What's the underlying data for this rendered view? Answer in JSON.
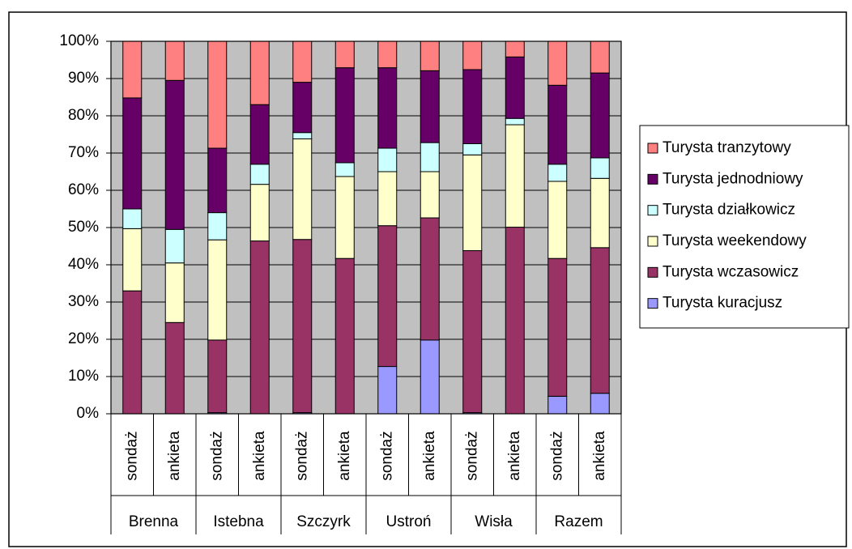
{
  "chart_data": {
    "type": "stacked_bar",
    "categories": [
      "sondaż",
      "ankieta",
      "sondaż",
      "ankieta",
      "sondaż",
      "ankieta",
      "sondaż",
      "ankieta",
      "sondaż",
      "ankieta",
      "sondaż",
      "ankieta"
    ],
    "groups": [
      "Brenna",
      "Istebna",
      "Szczyrk",
      "Ustroń",
      "Wisła",
      "Razem"
    ],
    "series": [
      {
        "name": "Turysta kuracjusz",
        "color": "#9999ff",
        "values": [
          0,
          0,
          0.3,
          0,
          0.3,
          0,
          12.7,
          19.8,
          0.3,
          0,
          4.7,
          5.5
        ]
      },
      {
        "name": "Turysta wczasowicz",
        "color": "#993366",
        "values": [
          33,
          24.5,
          19.5,
          46.4,
          46.5,
          41.7,
          37.8,
          32.8,
          43.5,
          50.1,
          37,
          39.1
        ]
      },
      {
        "name": "Turysta weekendowy",
        "color": "#ffffcc",
        "values": [
          16.7,
          16,
          26.9,
          15.2,
          27,
          22,
          14.5,
          12.4,
          25.7,
          27.5,
          20.7,
          18.6
        ]
      },
      {
        "name": "Turysta działkowicz",
        "color": "#ccffff",
        "values": [
          5.3,
          9,
          7.3,
          5.4,
          1.7,
          3.7,
          6.3,
          7.8,
          3,
          1.7,
          4.6,
          5.5
        ]
      },
      {
        "name": "Turysta jednodniowy",
        "color": "#660066",
        "values": [
          29.8,
          40,
          17.3,
          16,
          13.5,
          25.5,
          21.6,
          19.3,
          19.9,
          16.5,
          21.2,
          22.8
        ]
      },
      {
        "name": "Turysta tranzytowy",
        "color": "#ff8080",
        "values": [
          15.2,
          10.5,
          28.7,
          17,
          11,
          7.1,
          7.1,
          7.9,
          7.6,
          4.2,
          11.8,
          8.5
        ]
      }
    ],
    "ylim": [
      0,
      100
    ],
    "yticks": [
      {
        "value": 0,
        "label": "0%"
      },
      {
        "value": 10,
        "label": "10%"
      },
      {
        "value": 20,
        "label": "20%"
      },
      {
        "value": 30,
        "label": "30%"
      },
      {
        "value": 40,
        "label": "40%"
      },
      {
        "value": 50,
        "label": "50%"
      },
      {
        "value": 60,
        "label": "60%"
      },
      {
        "value": 70,
        "label": "70%"
      },
      {
        "value": 80,
        "label": "80%"
      },
      {
        "value": 90,
        "label": "90%"
      },
      {
        "value": 100,
        "label": "100%"
      }
    ],
    "grid": true,
    "plot_background": "#c0c0c0",
    "legend": "right"
  }
}
